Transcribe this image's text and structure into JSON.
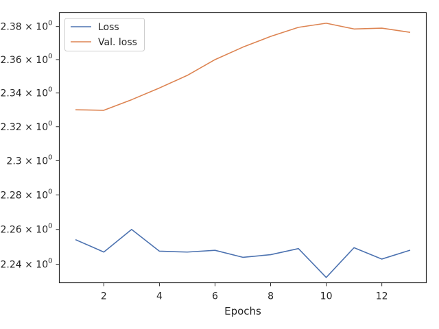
{
  "chart_data": {
    "type": "line",
    "title": "",
    "xlabel": "Epochs",
    "ylabel": "",
    "yscale": "log",
    "grid": false,
    "legend_position": "top-left",
    "x": [
      1,
      2,
      3,
      4,
      5,
      6,
      7,
      8,
      9,
      10,
      11,
      12,
      13
    ],
    "xlim": [
      0.4,
      13.6
    ],
    "ylim": [
      2.2295,
      2.3884
    ],
    "xticks": [
      {
        "value": 2,
        "label": "2"
      },
      {
        "value": 4,
        "label": "4"
      },
      {
        "value": 6,
        "label": "6"
      },
      {
        "value": 8,
        "label": "8"
      },
      {
        "value": 10,
        "label": "10"
      },
      {
        "value": 12,
        "label": "12"
      }
    ],
    "yticks": [
      {
        "value": 2.24,
        "mantissa": "2.24"
      },
      {
        "value": 2.26,
        "mantissa": "2.26"
      },
      {
        "value": 2.28,
        "mantissa": "2.28"
      },
      {
        "value": 2.3,
        "mantissa": "2.3"
      },
      {
        "value": 2.32,
        "mantissa": "2.32"
      },
      {
        "value": 2.34,
        "mantissa": "2.34"
      },
      {
        "value": 2.36,
        "mantissa": "2.36"
      },
      {
        "value": 2.38,
        "mantissa": "2.38"
      }
    ],
    "ytick_multiplier": "× 10",
    "ytick_exponent": "0",
    "series": [
      {
        "name": "Loss",
        "color": "#4c72b0",
        "values": [
          2.254,
          2.247,
          2.26,
          2.2475,
          2.247,
          2.248,
          2.244,
          2.2455,
          2.249,
          2.2325,
          2.2495,
          2.243,
          2.248
        ]
      },
      {
        "name": "Val. loss",
        "color": "#dd8452",
        "values": [
          2.33,
          2.3297,
          2.336,
          2.343,
          2.3505,
          2.36,
          2.3675,
          2.374,
          2.3795,
          2.382,
          2.3785,
          2.379,
          2.3765
        ]
      }
    ]
  }
}
